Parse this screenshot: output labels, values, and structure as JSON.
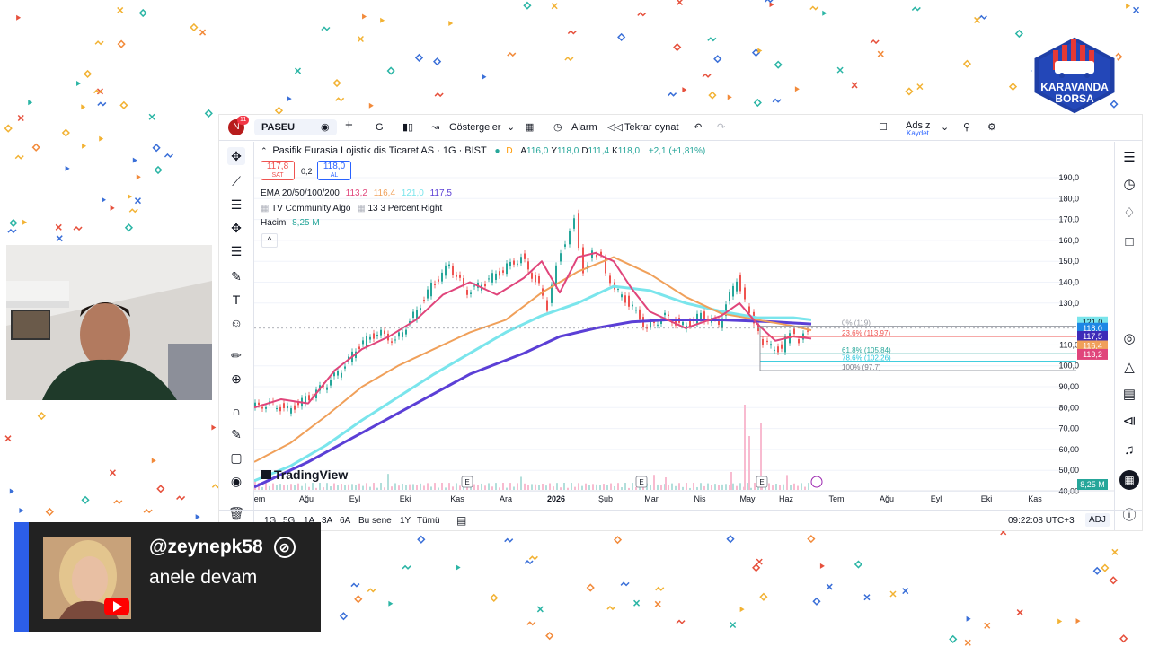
{
  "toolbar": {
    "avatar_letter": "N",
    "notifications": "11",
    "symbol": "PASEU",
    "add": "+",
    "interval": "G",
    "indicators": "Göstergeler",
    "alarm": "Alarm",
    "replay": "Tekrar oynat",
    "layout_name": "Adsız",
    "layout_save": "Kaydet"
  },
  "legend": {
    "title": "Pasifik Eurasia Lojistik dis Ticaret AS · 1G · BIST",
    "d_badge": "D",
    "ohlc": [
      {
        "k": "A",
        "v": "116,0"
      },
      {
        "k": "Y",
        "v": "118,0"
      },
      {
        "k": "D",
        "v": "111,4"
      },
      {
        "k": "K",
        "v": "118,0"
      }
    ],
    "change": "+2,1 (+1,81%)",
    "sell_price": "117,8",
    "sell_label": "SAT",
    "spread": "0,2",
    "buy_price": "118,0",
    "buy_label": "AL",
    "ema_label": "EMA 20/50/100/200",
    "ema_values": [
      "113,2",
      "116,4",
      "121,0",
      "117,5"
    ],
    "algo": "TV Community Algo",
    "algo_setting": "13 3 Percent Right",
    "volume_label": "Hacim",
    "volume_value": "8,25 M",
    "collapse": "^"
  },
  "colors": {
    "ema20": "#e0457b",
    "ema50": "#f0a05a",
    "ema100": "#7ae5ec",
    "ema200": "#5b3fd6",
    "up": "#26a69a",
    "down": "#ef5350"
  },
  "chart_data": {
    "type": "line",
    "y_ticks": [
      "190,0",
      "180,0",
      "170,0",
      "160,0",
      "150,0",
      "140,0",
      "130,0",
      "110,0",
      "100,0",
      "90,00",
      "80,00",
      "70,00",
      "60,00",
      "50,00",
      "40,00"
    ],
    "x_ticks": [
      "em",
      "Ağu",
      "Eyl",
      "Eki",
      "Kas",
      "Ara",
      "2026",
      "Şub",
      "Mar",
      "Nis",
      "May",
      "Haz",
      "Tem",
      "Ağu",
      "Eyl",
      "Eki",
      "Kas"
    ],
    "price_tags": [
      {
        "v": "121,0",
        "color": "#7ae5ec"
      },
      {
        "v": "118,0",
        "color": "#1e88e5"
      },
      {
        "v": "117,5",
        "color": "#3d2bb8"
      },
      {
        "v": "116,4",
        "color": "#f0a05a"
      },
      {
        "v": "113,2",
        "color": "#e0457b"
      }
    ],
    "volume_tag": "8,25 M",
    "fib_levels": [
      {
        "label": "0% (119)",
        "value": 119
      },
      {
        "label": "23.6% (113.97)",
        "value": 113.97
      },
      {
        "label": "61.8% (105.84)",
        "value": 105.84
      },
      {
        "label": "78.6% (102.26)",
        "value": 102.26
      },
      {
        "label": "100% (97.7)",
        "value": 97.7
      }
    ],
    "ema200": [
      [
        0,
        42
      ],
      [
        60,
        54
      ],
      [
        120,
        68
      ],
      [
        180,
        82
      ],
      [
        240,
        96
      ],
      [
        300,
        106
      ],
      [
        340,
        114
      ],
      [
        380,
        118
      ],
      [
        420,
        121
      ],
      [
        460,
        122
      ],
      [
        520,
        122
      ],
      [
        580,
        121
      ],
      [
        620,
        120
      ]
    ],
    "ema100": [
      [
        0,
        45
      ],
      [
        40,
        52
      ],
      [
        80,
        62
      ],
      [
        120,
        74
      ],
      [
        160,
        85
      ],
      [
        200,
        96
      ],
      [
        240,
        106
      ],
      [
        280,
        116
      ],
      [
        320,
        124
      ],
      [
        360,
        130
      ],
      [
        400,
        138
      ],
      [
        440,
        136
      ],
      [
        480,
        130
      ],
      [
        520,
        126
      ],
      [
        560,
        123
      ],
      [
        600,
        123
      ],
      [
        620,
        122
      ]
    ],
    "ema50": [
      [
        0,
        54
      ],
      [
        40,
        63
      ],
      [
        80,
        76
      ],
      [
        120,
        90
      ],
      [
        160,
        100
      ],
      [
        200,
        108
      ],
      [
        240,
        116
      ],
      [
        280,
        122
      ],
      [
        320,
        135
      ],
      [
        360,
        145
      ],
      [
        400,
        152
      ],
      [
        440,
        144
      ],
      [
        480,
        133
      ],
      [
        520,
        125
      ],
      [
        560,
        122
      ],
      [
        600,
        119
      ],
      [
        620,
        117
      ]
    ],
    "ema20": [
      [
        0,
        80
      ],
      [
        30,
        84
      ],
      [
        60,
        82
      ],
      [
        90,
        98
      ],
      [
        120,
        108
      ],
      [
        150,
        114
      ],
      [
        180,
        122
      ],
      [
        210,
        134
      ],
      [
        240,
        140
      ],
      [
        270,
        134
      ],
      [
        300,
        142
      ],
      [
        320,
        150
      ],
      [
        340,
        135
      ],
      [
        360,
        152
      ],
      [
        380,
        154
      ],
      [
        400,
        150
      ],
      [
        420,
        137
      ],
      [
        440,
        126
      ],
      [
        480,
        118
      ],
      [
        520,
        124
      ],
      [
        540,
        130
      ],
      [
        560,
        120
      ],
      [
        580,
        112
      ],
      [
        600,
        114
      ],
      [
        620,
        113
      ]
    ],
    "price": [
      [
        0,
        80
      ],
      [
        20,
        82
      ],
      [
        40,
        79
      ],
      [
        60,
        84
      ],
      [
        80,
        90
      ],
      [
        100,
        98
      ],
      [
        120,
        110
      ],
      [
        140,
        116
      ],
      [
        160,
        112
      ],
      [
        180,
        124
      ],
      [
        200,
        138
      ],
      [
        220,
        148
      ],
      [
        240,
        135
      ],
      [
        260,
        140
      ],
      [
        280,
        146
      ],
      [
        300,
        152
      ],
      [
        320,
        138
      ],
      [
        330,
        128
      ],
      [
        340,
        150
      ],
      [
        350,
        160
      ],
      [
        360,
        172
      ],
      [
        370,
        145
      ],
      [
        380,
        155
      ],
      [
        390,
        152
      ],
      [
        400,
        138
      ],
      [
        420,
        130
      ],
      [
        440,
        118
      ],
      [
        460,
        124
      ],
      [
        480,
        119
      ],
      [
        500,
        124
      ],
      [
        520,
        120
      ],
      [
        540,
        142
      ],
      [
        555,
        124
      ],
      [
        570,
        110
      ],
      [
        590,
        108
      ],
      [
        600,
        116
      ],
      [
        610,
        112
      ],
      [
        620,
        118
      ]
    ]
  },
  "watermark": "TradingView",
  "bottom": {
    "ranges": [
      "1G",
      "5G",
      "1A",
      "3A",
      "6A",
      "Bu sene",
      "1Y",
      "Tümü"
    ],
    "time": "09:22:08 UTC+3",
    "adj": "ADJ"
  },
  "comment": {
    "user": "@zeynepk58",
    "text": "anele devam"
  },
  "logo": {
    "line1": "KARAVANDA",
    "line2": "BORSA"
  }
}
